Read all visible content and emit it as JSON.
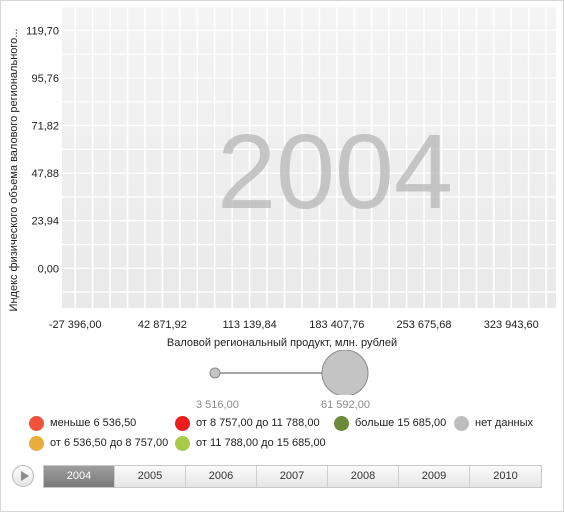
{
  "chart_data": {
    "type": "scatter",
    "watermark": "2004",
    "xlabel": "Валовой региональный продукт, млн. рублей",
    "ylabel": "Индекс физического объема валового регионального...",
    "x_ticks": [
      "-27 396,00",
      "42 871,92",
      "113 139,84",
      "183 407,76",
      "253 675,68",
      "323 943,60"
    ],
    "x_tick_values": [
      -27396.0,
      42871.92,
      113139.84,
      183407.76,
      253675.68,
      323943.6
    ],
    "y_ticks": [
      "0,00",
      "23,94",
      "47,88",
      "71,82",
      "95,76",
      "119,70"
    ],
    "y_tick_values": [
      0.0,
      23.94,
      47.88,
      71.82,
      95.76,
      119.7
    ],
    "xlim": [
      -38000,
      360000
    ],
    "ylim": [
      -20,
      132
    ],
    "grid": true,
    "points": [],
    "size_legend": {
      "min_label": "3 516,00",
      "max_label": "61 592,00",
      "min_value": 3516.0,
      "max_value": 61592.0,
      "color": "#c4c4c4"
    },
    "color_legend": [
      {
        "label": "меньше 6 536,50",
        "color": "#f0533a"
      },
      {
        "label": "от 8 757,00 до 11 788,00",
        "color": "#ee1c1c"
      },
      {
        "label": "больше 15 685,00",
        "color": "#6b8a3a"
      },
      {
        "label": "нет данных",
        "color": "#bdbdbd"
      },
      {
        "label": "от 6 536,50 до 8 757,00",
        "color": "#e8ad3a"
      },
      {
        "label": "от 11 788,00 до 15 685,00",
        "color": "#a9c94a"
      }
    ]
  },
  "timeline": {
    "years": [
      "2004",
      "2005",
      "2006",
      "2007",
      "2008",
      "2009",
      "2010"
    ],
    "active": "2004"
  }
}
